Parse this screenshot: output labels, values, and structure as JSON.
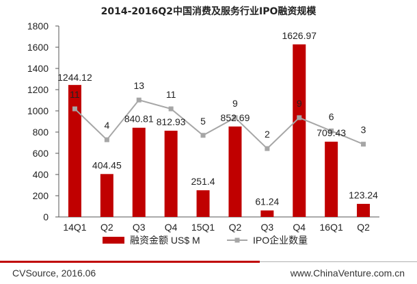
{
  "title": "2014-2016Q2中国消费及服务行业IPO融资规模",
  "chart_data": {
    "type": "bar",
    "categories": [
      "14Q1",
      "Q2",
      "Q3",
      "Q4",
      "15Q1",
      "Q2",
      "Q3",
      "Q4",
      "16Q1",
      "Q2"
    ],
    "series": [
      {
        "name": "融资金额 US$ M",
        "type": "bar",
        "color": "#c00000",
        "values": [
          1244.12,
          404.45,
          840.81,
          812.93,
          251.4,
          852.69,
          61.24,
          1626.97,
          709.43,
          123.24
        ],
        "labels": [
          "1244.12",
          "404.45",
          "840.81",
          "812.93",
          "251.4",
          "852.69",
          "61.24",
          "1626.97",
          "709.43",
          "123.24"
        ]
      },
      {
        "name": "IPO企业数量",
        "type": "line",
        "color": "#a6a6a6",
        "values": [
          11,
          4,
          13,
          11,
          5,
          9,
          2,
          9,
          6,
          3
        ],
        "labels": [
          "11",
          "4",
          "13",
          "11",
          "5",
          "9",
          "2",
          "9",
          "6",
          "3"
        ]
      }
    ],
    "yticks": [
      "0",
      "200",
      "400",
      "600",
      "800",
      "1000",
      "1200",
      "1400",
      "1600",
      "1800"
    ],
    "ylim": [
      0,
      1800
    ],
    "legend_position": "bottom",
    "grid": false
  },
  "footer": {
    "source": "CVSource, 2016.06",
    "website": "www.ChinaVenture.com.cn"
  }
}
